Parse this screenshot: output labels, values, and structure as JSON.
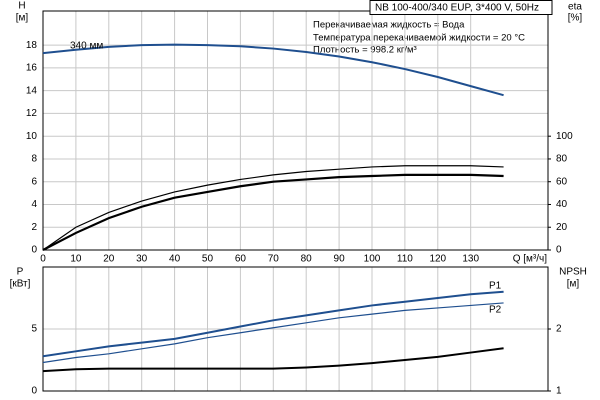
{
  "chart_data": [
    {
      "type": "line",
      "title": "NB 100-400/340 EUP, 3*400 V, 50Hz",
      "annotations": [
        "Перекачиваемая жидкость = Вода",
        "Температура перекачиваемой жидкости = 20 °C",
        "Плотность = 998.2 кг/м³"
      ],
      "ylabel": "H",
      "yunit": "[м]",
      "y2label": "eta",
      "y2unit": "[%]",
      "xlabel": "Q [м³/ч]",
      "x": [
        0,
        10,
        20,
        30,
        40,
        50,
        60,
        70,
        80,
        90,
        100,
        110,
        120,
        130,
        140
      ],
      "xlim": [
        0,
        153.5
      ],
      "xticks": [
        0,
        10,
        20,
        30,
        40,
        50,
        60,
        70,
        80,
        90,
        100,
        110,
        120,
        130
      ],
      "xtick_labels": true,
      "ylim": [
        0,
        21
      ],
      "yticks": [
        0,
        2,
        4,
        6,
        8,
        10,
        12,
        14,
        16,
        18
      ],
      "y2lim": [
        0,
        210
      ],
      "y2ticks": [
        0,
        20,
        40,
        60,
        80,
        100
      ],
      "grid": true,
      "series": [
        {
          "name": "340 мм",
          "color": "#1f4f8f",
          "width": 2,
          "values": [
            17.3,
            17.6,
            17.85,
            18.0,
            18.05,
            18.0,
            17.9,
            17.7,
            17.4,
            17.0,
            16.5,
            15.9,
            15.2,
            14.4,
            13.6
          ]
        },
        {
          "color": "#000000",
          "width": 1.2,
          "axis": "y2",
          "values": [
            0,
            20,
            33,
            43,
            51,
            57,
            62,
            66,
            69,
            71,
            73,
            74,
            74,
            74,
            73
          ]
        },
        {
          "color": "#000000",
          "width": 2.2,
          "axis": "y2",
          "values": [
            0,
            15,
            28,
            38,
            46,
            51,
            56,
            60,
            62,
            64,
            65,
            66,
            66,
            66,
            65
          ]
        }
      ]
    },
    {
      "type": "line",
      "ylabel": "P",
      "yunit": "[кВт]",
      "y2label": "NPSH",
      "y2unit": "[м]",
      "x": [
        0,
        10,
        20,
        30,
        40,
        50,
        60,
        70,
        80,
        90,
        100,
        110,
        120,
        130,
        140
      ],
      "xlim": [
        0,
        153.5
      ],
      "xticks": [
        0,
        10,
        20,
        30,
        40,
        50,
        60,
        70,
        80,
        90,
        100,
        110,
        120,
        130
      ],
      "xtick_labels": false,
      "ylim": [
        0,
        10
      ],
      "yticks": [
        0,
        5
      ],
      "y2lim": [
        1,
        3
      ],
      "y2ticks": [
        1,
        2
      ],
      "grid": true,
      "series": [
        {
          "name": "P1",
          "color": "#1f4f8f",
          "width": 2,
          "values": [
            2.8,
            3.2,
            3.6,
            3.9,
            4.2,
            4.7,
            5.2,
            5.7,
            6.1,
            6.5,
            6.9,
            7.2,
            7.5,
            7.8,
            8.0
          ]
        },
        {
          "name": "P2",
          "color": "#1f4f8f",
          "width": 1.2,
          "values": [
            2.3,
            2.7,
            3.0,
            3.4,
            3.8,
            4.3,
            4.7,
            5.1,
            5.5,
            5.9,
            6.2,
            6.5,
            6.7,
            6.9,
            7.1
          ]
        },
        {
          "color": "#000000",
          "width": 2,
          "axis": "y2",
          "values": [
            1.32,
            1.35,
            1.36,
            1.36,
            1.36,
            1.36,
            1.36,
            1.36,
            1.38,
            1.41,
            1.45,
            1.5,
            1.55,
            1.62,
            1.69
          ]
        }
      ]
    }
  ]
}
